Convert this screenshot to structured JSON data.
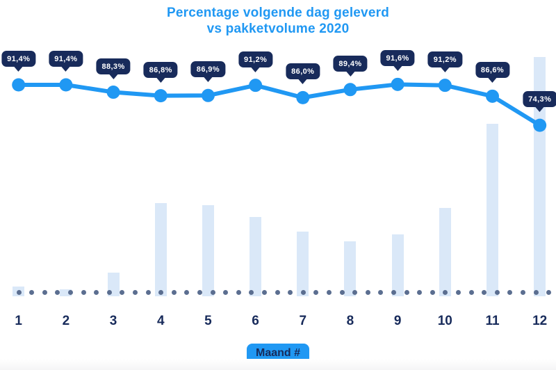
{
  "title": {
    "line1": "Percentage volgende dag geleverd",
    "line2": "vs pakketvolume 2020"
  },
  "x_axis": {
    "label": "Maand #",
    "months": [
      "1",
      "2",
      "3",
      "4",
      "5",
      "6",
      "7",
      "8",
      "9",
      "10",
      "11",
      "12"
    ]
  },
  "chart_data": {
    "type": "combo",
    "title": "Percentage volgende dag geleverd vs pakketvolume 2020",
    "xlabel": "Maand #",
    "categories": [
      1,
      2,
      3,
      4,
      5,
      6,
      7,
      8,
      9,
      10,
      11,
      12
    ],
    "series": [
      {
        "name": "Percentage volgende dag geleverd",
        "type": "line",
        "unit": "%",
        "values": [
          91.4,
          91.4,
          88.3,
          86.8,
          86.9,
          91.2,
          86.0,
          89.4,
          91.6,
          91.2,
          86.6,
          74.3
        ],
        "labels": [
          "91,4%",
          "91,4%",
          "88,3%",
          "86,8%",
          "86,9%",
          "91,2%",
          "86,0%",
          "89,4%",
          "91,6%",
          "91,2%",
          "86,6%",
          "74,3%"
        ]
      },
      {
        "name": "Pakketvolume 2020",
        "type": "bar",
        "unit": "relative-index-max-100",
        "values": [
          4,
          3,
          10,
          39,
          38,
          33,
          27,
          23,
          26,
          37,
          72,
          100
        ]
      }
    ],
    "legend": false,
    "grid": false,
    "y_axis_visible": false,
    "x_baseline_style": "dotted"
  },
  "colors": {
    "accent_blue": "#2098F3",
    "navy": "#182B5B",
    "bar_fill": "#DAE8F8",
    "axis_dot": "#5B6E90",
    "tooltip_text": "#FFFFFF",
    "background": "#FFFFFF"
  }
}
